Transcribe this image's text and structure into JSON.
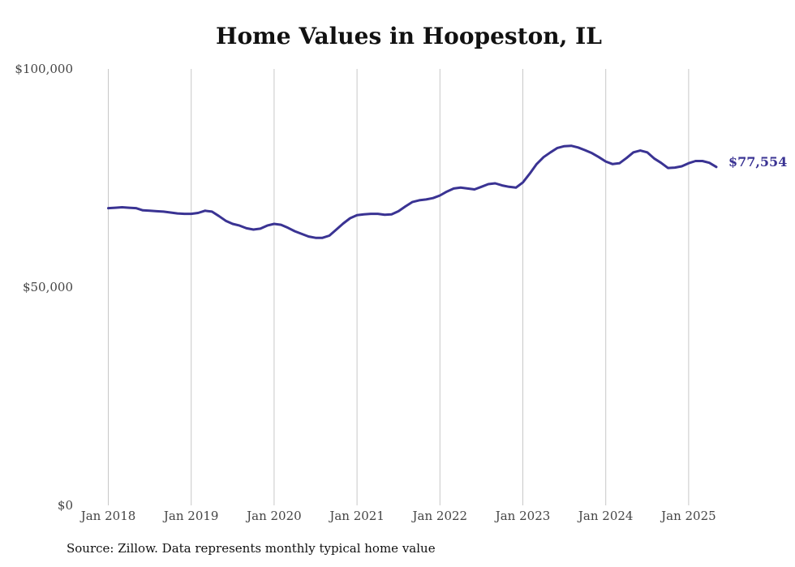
{
  "chart_data": {
    "type": "line",
    "title": "Home Values in Hoopeston, IL",
    "xlabel": "",
    "ylabel": "",
    "ylim": [
      0,
      100000
    ],
    "y_ticks": [
      0,
      50000,
      100000
    ],
    "y_tick_labels": [
      "$0",
      "$50,000",
      "$100,000"
    ],
    "x_ticks": [
      "2018-01",
      "2019-01",
      "2020-01",
      "2021-01",
      "2022-01",
      "2023-01",
      "2024-01",
      "2025-01"
    ],
    "x_tick_labels": [
      "Jan 2018",
      "Jan 2019",
      "Jan 2020",
      "Jan 2021",
      "Jan 2022",
      "Jan 2023",
      "Jan 2024",
      "Jan 2025"
    ],
    "grid": "vertical",
    "series": [
      {
        "color": "#3a3393",
        "end_label": "$77,554",
        "points": [
          [
            "2018-01",
            68100
          ],
          [
            "2018-02",
            68200
          ],
          [
            "2018-03",
            68300
          ],
          [
            "2018-04",
            68200
          ],
          [
            "2018-05",
            68100
          ],
          [
            "2018-06",
            67600
          ],
          [
            "2018-07",
            67500
          ],
          [
            "2018-08",
            67400
          ],
          [
            "2018-09",
            67300
          ],
          [
            "2018-10",
            67100
          ],
          [
            "2018-11",
            66900
          ],
          [
            "2018-12",
            66800
          ],
          [
            "2019-01",
            66800
          ],
          [
            "2019-02",
            67000
          ],
          [
            "2019-03",
            67500
          ],
          [
            "2019-04",
            67300
          ],
          [
            "2019-05",
            66300
          ],
          [
            "2019-06",
            65200
          ],
          [
            "2019-07",
            64500
          ],
          [
            "2019-08",
            64100
          ],
          [
            "2019-09",
            63500
          ],
          [
            "2019-10",
            63200
          ],
          [
            "2019-11",
            63400
          ],
          [
            "2019-12",
            64100
          ],
          [
            "2020-01",
            64500
          ],
          [
            "2020-02",
            64300
          ],
          [
            "2020-03",
            63600
          ],
          [
            "2020-04",
            62800
          ],
          [
            "2020-05",
            62200
          ],
          [
            "2020-06",
            61600
          ],
          [
            "2020-07",
            61300
          ],
          [
            "2020-08",
            61300
          ],
          [
            "2020-09",
            61800
          ],
          [
            "2020-10",
            63200
          ],
          [
            "2020-11",
            64600
          ],
          [
            "2020-12",
            65800
          ],
          [
            "2021-01",
            66500
          ],
          [
            "2021-02",
            66700
          ],
          [
            "2021-03",
            66800
          ],
          [
            "2021-04",
            66800
          ],
          [
            "2021-05",
            66600
          ],
          [
            "2021-06",
            66700
          ],
          [
            "2021-07",
            67400
          ],
          [
            "2021-08",
            68500
          ],
          [
            "2021-09",
            69500
          ],
          [
            "2021-10",
            69900
          ],
          [
            "2021-11",
            70100
          ],
          [
            "2021-12",
            70400
          ],
          [
            "2022-01",
            71000
          ],
          [
            "2022-02",
            71900
          ],
          [
            "2022-03",
            72600
          ],
          [
            "2022-04",
            72800
          ],
          [
            "2022-05",
            72600
          ],
          [
            "2022-06",
            72400
          ],
          [
            "2022-07",
            73000
          ],
          [
            "2022-08",
            73600
          ],
          [
            "2022-09",
            73800
          ],
          [
            "2022-10",
            73300
          ],
          [
            "2022-11",
            73000
          ],
          [
            "2022-12",
            72800
          ],
          [
            "2023-01",
            74000
          ],
          [
            "2023-02",
            76000
          ],
          [
            "2023-03",
            78200
          ],
          [
            "2023-04",
            79800
          ],
          [
            "2023-05",
            80900
          ],
          [
            "2023-06",
            81900
          ],
          [
            "2023-07",
            82300
          ],
          [
            "2023-08",
            82400
          ],
          [
            "2023-09",
            82000
          ],
          [
            "2023-10",
            81400
          ],
          [
            "2023-11",
            80700
          ],
          [
            "2023-12",
            79800
          ],
          [
            "2024-01",
            78800
          ],
          [
            "2024-02",
            78200
          ],
          [
            "2024-03",
            78400
          ],
          [
            "2024-04",
            79600
          ],
          [
            "2024-05",
            80900
          ],
          [
            "2024-06",
            81300
          ],
          [
            "2024-07",
            80900
          ],
          [
            "2024-08",
            79500
          ],
          [
            "2024-09",
            78500
          ],
          [
            "2024-10",
            77300
          ],
          [
            "2024-11",
            77400
          ],
          [
            "2024-12",
            77700
          ],
          [
            "2025-01",
            78400
          ],
          [
            "2025-02",
            78900
          ],
          [
            "2025-03",
            78900
          ],
          [
            "2025-04",
            78500
          ],
          [
            "2025-05",
            77554
          ]
        ]
      }
    ]
  },
  "footer": {
    "source_text": "Source: Zillow. Data represents monthly typical home value"
  }
}
